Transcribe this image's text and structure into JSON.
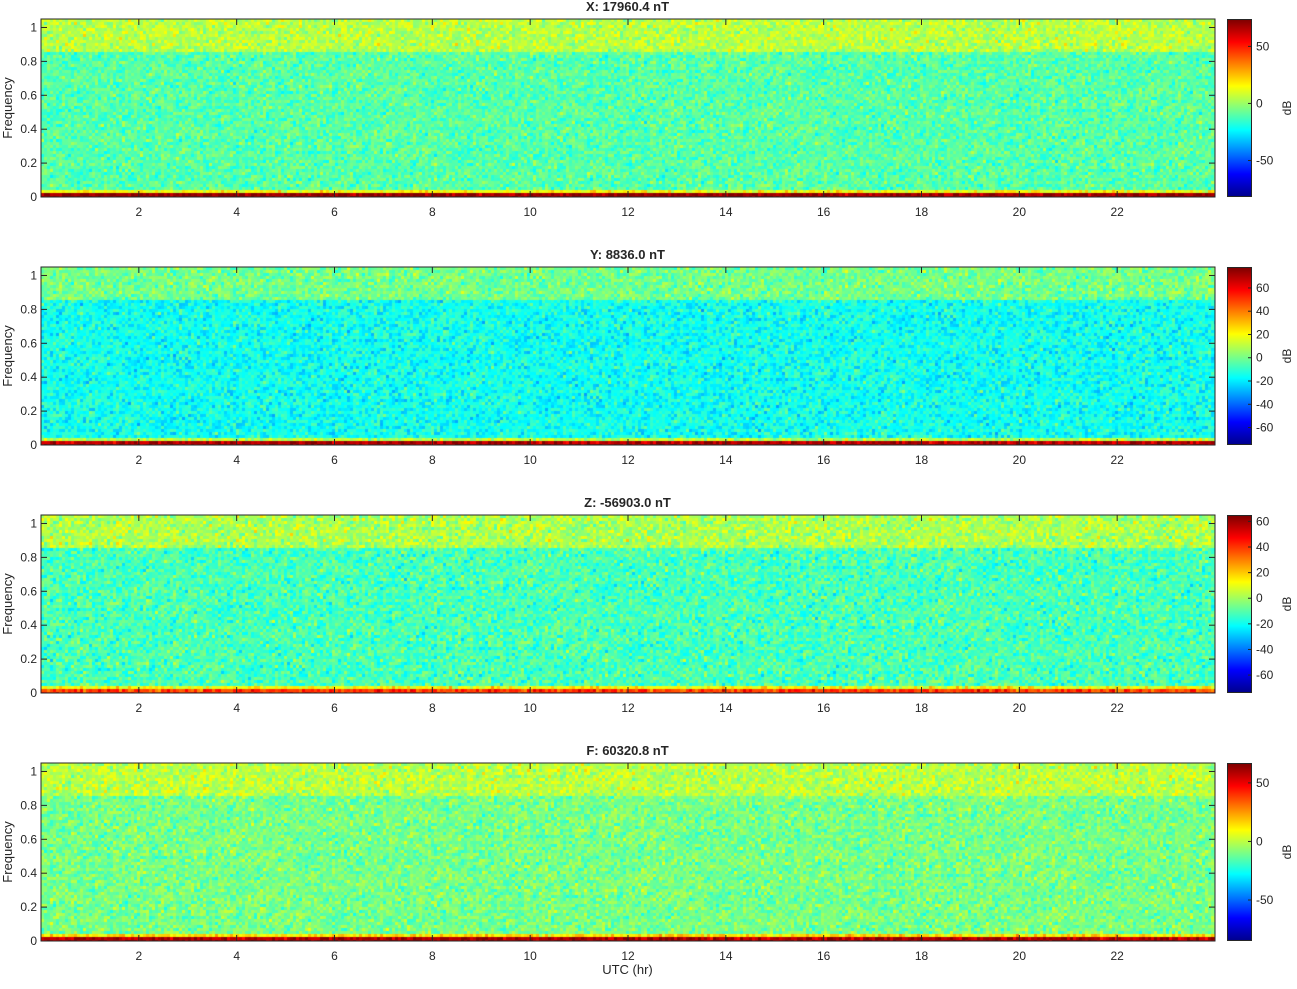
{
  "chart_data": [
    {
      "type": "heatmap",
      "title": "X: 17960.4 nT",
      "ylabel": "Frequency",
      "colorbar_label": "dB",
      "colorbar_ticks": [
        50,
        0,
        -50
      ],
      "clim": [
        -82,
        74
      ],
      "colormap": "jet",
      "xlim": [
        0,
        24
      ],
      "ylim": [
        0,
        1.05
      ],
      "xticks": [
        2,
        4,
        6,
        8,
        10,
        12,
        14,
        16,
        18,
        20,
        22
      ],
      "yticks": [
        0,
        0.2,
        0.4,
        0.6,
        0.8,
        1
      ],
      "ytick_labels": [
        "0",
        "0.2",
        "0.4",
        "0.6",
        "0.8",
        "1"
      ],
      "background_level": -10,
      "high_band_level": 5,
      "low_band_level": 70
    },
    {
      "type": "heatmap",
      "title": "Y: 8836.0 nT",
      "ylabel": "Frequency",
      "colorbar_label": "dB",
      "colorbar_ticks": [
        60,
        40,
        20,
        0,
        -20,
        -40,
        -60
      ],
      "clim": [
        -75,
        78
      ],
      "colormap": "jet",
      "xlim": [
        0,
        24
      ],
      "ylim": [
        0,
        1.05
      ],
      "xticks": [
        2,
        4,
        6,
        8,
        10,
        12,
        14,
        16,
        18,
        20,
        22
      ],
      "yticks": [
        0,
        0.2,
        0.4,
        0.6,
        0.8,
        1
      ],
      "ytick_labels": [
        "0",
        "0.2",
        "0.4",
        "0.6",
        "0.8",
        "1"
      ],
      "background_level": -15,
      "high_band_level": 0,
      "low_band_level": 70
    },
    {
      "type": "heatmap",
      "title": "Z: -56903.0 nT",
      "ylabel": "Frequency",
      "colorbar_label": "dB",
      "colorbar_ticks": [
        60,
        40,
        20,
        0,
        -20,
        -40,
        -60
      ],
      "clim": [
        -74,
        65
      ],
      "colormap": "jet",
      "xlim": [
        0,
        24
      ],
      "ylim": [
        0,
        1.05
      ],
      "xticks": [
        2,
        4,
        6,
        8,
        10,
        12,
        14,
        16,
        18,
        20,
        22
      ],
      "yticks": [
        0,
        0.2,
        0.4,
        0.6,
        0.8,
        1
      ],
      "ytick_labels": [
        "0",
        "0.2",
        "0.4",
        "0.6",
        "0.8",
        "1"
      ],
      "background_level": -12,
      "high_band_level": 2,
      "low_band_level": 40
    },
    {
      "type": "heatmap",
      "title": "F: 60320.8 nT",
      "ylabel": "Frequency",
      "colorbar_label": "dB",
      "colorbar_ticks": [
        50,
        0,
        -50
      ],
      "clim": [
        -85,
        67
      ],
      "colormap": "jet",
      "xlim": [
        0,
        24
      ],
      "ylim": [
        0,
        1.05
      ],
      "xticks": [
        2,
        4,
        6,
        8,
        10,
        12,
        14,
        16,
        18,
        20,
        22
      ],
      "yticks": [
        0,
        0.2,
        0.4,
        0.6,
        0.8,
        1
      ],
      "ytick_labels": [
        "0",
        "0.2",
        "0.4",
        "0.6",
        "0.8",
        "1"
      ],
      "background_level": -10,
      "high_band_level": 0,
      "low_band_level": 60
    }
  ],
  "xlabel": "UTC (hr)"
}
